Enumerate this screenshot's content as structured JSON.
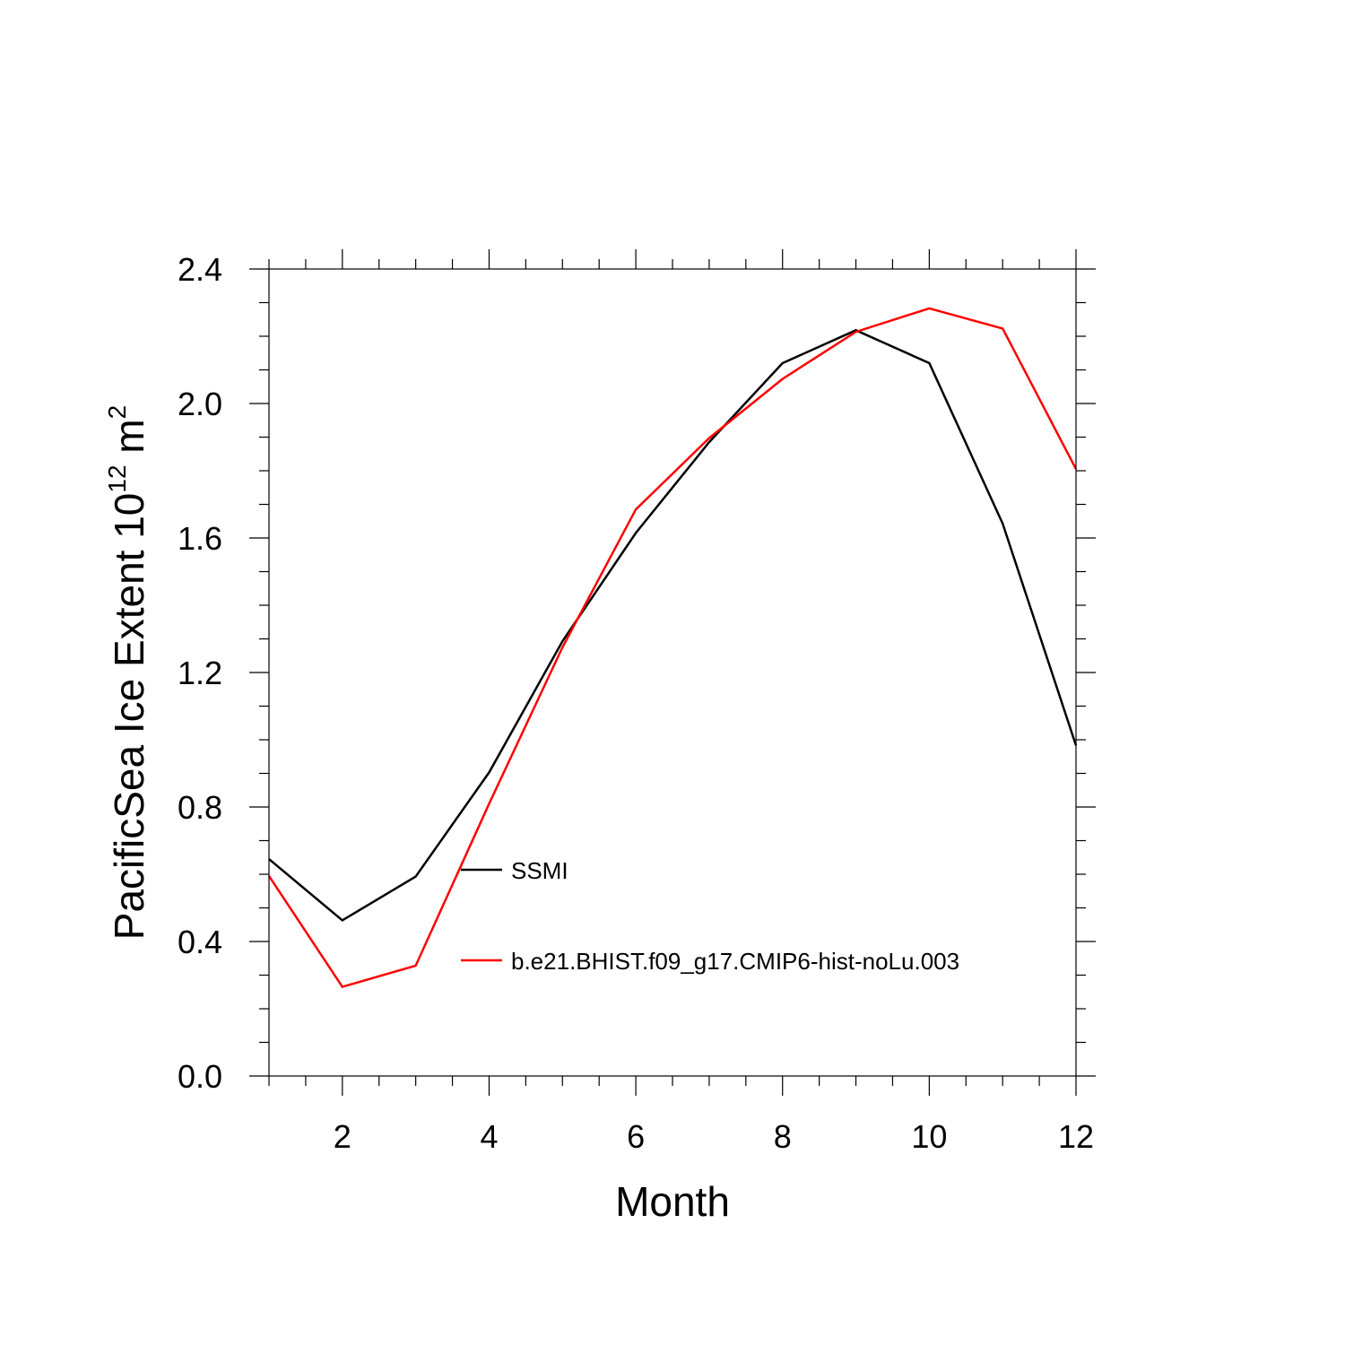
{
  "chart_data": {
    "type": "line",
    "title": "",
    "xlabel": "Month",
    "ylabel_main": "PacificSea Ice Extent 10",
    "ylabel_sup1": "12",
    "ylabel_unit": " m",
    "ylabel_sup2": "2",
    "xlim": [
      1,
      12
    ],
    "ylim": [
      0.0,
      2.4
    ],
    "xticks": [
      2,
      4,
      6,
      8,
      10,
      12
    ],
    "xtick_labels": [
      "2",
      "4",
      "6",
      "8",
      "10",
      "12"
    ],
    "yticks": [
      0.0,
      0.4,
      0.8,
      1.2,
      1.6,
      2.0,
      2.4
    ],
    "ytick_labels": [
      "0.0",
      "0.4",
      "0.8",
      "1.2",
      "1.6",
      "2.0",
      "2.4"
    ],
    "grid": false,
    "legend_position": "center",
    "x": [
      1,
      2,
      3,
      4,
      5,
      6,
      7,
      8,
      9,
      10,
      11,
      12
    ],
    "series": [
      {
        "name": "SSMI",
        "color": "#000000",
        "values": [
          0.645,
          0.463,
          0.593,
          0.903,
          1.293,
          1.615,
          1.885,
          2.12,
          2.218,
          2.12,
          1.643,
          0.983
        ]
      },
      {
        "name": "b.e21.BHIST.f09_g17.CMIP6-hist-noLu.003",
        "color": "#ff0000",
        "values": [
          0.595,
          0.265,
          0.328,
          0.81,
          1.275,
          1.685,
          1.897,
          2.073,
          2.213,
          2.283,
          2.223,
          1.805
        ]
      }
    ]
  }
}
